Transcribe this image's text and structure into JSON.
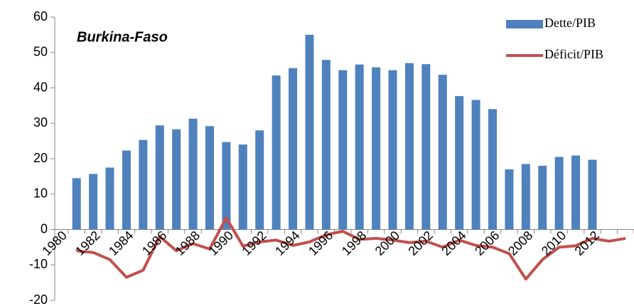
{
  "chart_data": {
    "type": "bar_line",
    "annotation": "Burkina-Faso",
    "categories": [
      "1980",
      null,
      "1982",
      null,
      "1984",
      null,
      "1986",
      null,
      "1988",
      null,
      "1990",
      null,
      "1992",
      null,
      "1994",
      null,
      "1996",
      null,
      "1998",
      null,
      "2000",
      null,
      "2002",
      null,
      "2004",
      null,
      "2006",
      null,
      "2008",
      null,
      "2010",
      null,
      "2012",
      null
    ],
    "series": [
      {
        "name": "Dette/PIB",
        "type": "bar",
        "color": "#4f81bd",
        "values": [
          14.5,
          15.7,
          17.5,
          22.3,
          25.3,
          29.4,
          28.3,
          31.3,
          29.2,
          24.7,
          24.0,
          28.0,
          43.5,
          45.6,
          55.0,
          47.9,
          45.0,
          46.6,
          45.8,
          45.0,
          47.0,
          46.7,
          43.7,
          37.7,
          36.6,
          34.0,
          17.0,
          18.5,
          18.0,
          20.5,
          20.9,
          19.7,
          null,
          null
        ]
      },
      {
        "name": "Déficit/PIB",
        "type": "line",
        "color": "#c0504d",
        "values": [
          -6.0,
          -6.5,
          -8.5,
          -13.5,
          -11.5,
          -2.0,
          -6.0,
          -4.0,
          -5.5,
          3.3,
          -4.7,
          -3.5,
          -3.0,
          -4.5,
          -3.5,
          -1.5,
          -0.5,
          -2.8,
          -2.5,
          -3.0,
          -3.7,
          -3.3,
          -5.0,
          -3.0,
          -4.5,
          -5.0,
          -6.8,
          -14.0,
          -8.5,
          -5.0,
          -4.6,
          -2.5,
          -3.3,
          -2.5
        ]
      }
    ],
    "ylim": [
      -20,
      60
    ],
    "yticks": [
      -20,
      -10,
      0,
      10,
      20,
      30,
      40,
      50,
      60
    ],
    "legend": "top-right"
  }
}
